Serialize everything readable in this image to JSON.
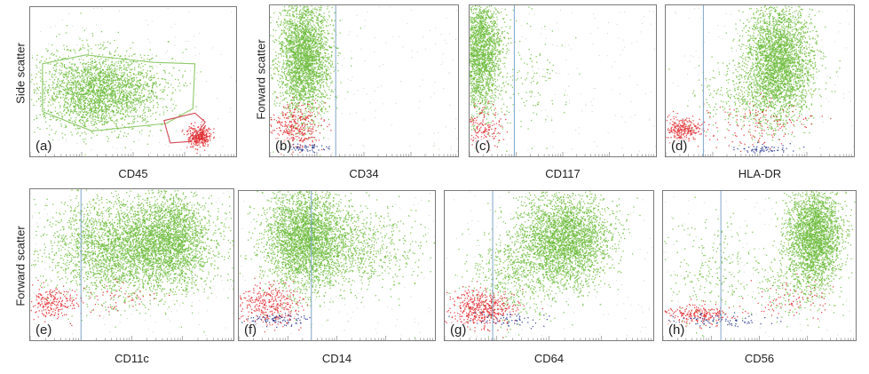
{
  "chart_data": [
    {
      "type": "scatter",
      "panel_label": "(a)",
      "xlabel": "CD45",
      "ylabel": "Side scatter",
      "series": [
        {
          "color": "#6dbb3c"
        },
        {
          "color": "#e0262a"
        }
      ],
      "clusters": [
        {
          "series": 0,
          "cx": 0.33,
          "cy": 0.56,
          "sx": 0.15,
          "sy": 0.13,
          "n": 2600
        },
        {
          "series": 1,
          "cx": 0.82,
          "cy": 0.86,
          "sx": 0.03,
          "sy": 0.035,
          "n": 320
        }
      ],
      "gates": [
        {
          "series": 0,
          "points": [
            [
              0.06,
              0.38
            ],
            [
              0.27,
              0.32
            ],
            [
              0.6,
              0.37
            ],
            [
              0.8,
              0.38
            ],
            [
              0.79,
              0.68
            ],
            [
              0.66,
              0.78
            ],
            [
              0.3,
              0.83
            ],
            [
              0.06,
              0.7
            ]
          ]
        },
        {
          "series": 1,
          "points": [
            [
              0.65,
              0.76
            ],
            [
              0.8,
              0.71
            ],
            [
              0.85,
              0.77
            ],
            [
              0.78,
              0.9
            ],
            [
              0.68,
              0.91
            ]
          ]
        }
      ],
      "divider": null
    },
    {
      "type": "scatter",
      "panel_label": "(b)",
      "xlabel": "CD34",
      "ylabel": "Forward scatter",
      "series": [
        {
          "color": "#6dbb3c"
        },
        {
          "color": "#e0262a"
        },
        {
          "color": "#1f2f8a"
        }
      ],
      "clusters": [
        {
          "series": 0,
          "cx": 0.18,
          "cy": 0.33,
          "sx": 0.07,
          "sy": 0.2,
          "n": 2800
        },
        {
          "series": 1,
          "cx": 0.13,
          "cy": 0.8,
          "sx": 0.07,
          "sy": 0.07,
          "n": 320
        },
        {
          "series": 2,
          "cx": 0.18,
          "cy": 0.94,
          "sx": 0.06,
          "sy": 0.015,
          "n": 60
        }
      ],
      "gates": [],
      "divider": 0.35
    },
    {
      "type": "scatter",
      "panel_label": "(c)",
      "xlabel": "CD117",
      "ylabel": "",
      "series": [
        {
          "color": "#6dbb3c"
        },
        {
          "color": "#e0262a"
        }
      ],
      "clusters": [
        {
          "series": 0,
          "cx": 0.05,
          "cy": 0.3,
          "sx": 0.06,
          "sy": 0.2,
          "n": 2200
        },
        {
          "series": 0,
          "cx": 0.28,
          "cy": 0.5,
          "sx": 0.12,
          "sy": 0.2,
          "n": 150
        },
        {
          "series": 1,
          "cx": 0.07,
          "cy": 0.8,
          "sx": 0.05,
          "sy": 0.07,
          "n": 160
        }
      ],
      "gates": [],
      "divider": 0.24
    },
    {
      "type": "scatter",
      "panel_label": "(d)",
      "xlabel": "HLA-DR",
      "ylabel": "",
      "series": [
        {
          "color": "#6dbb3c"
        },
        {
          "color": "#e0262a"
        },
        {
          "color": "#1f2f8a"
        }
      ],
      "clusters": [
        {
          "series": 0,
          "cx": 0.6,
          "cy": 0.35,
          "sx": 0.09,
          "sy": 0.18,
          "n": 2800
        },
        {
          "series": 0,
          "cx": 0.48,
          "cy": 0.6,
          "sx": 0.14,
          "sy": 0.12,
          "n": 500
        },
        {
          "series": 1,
          "cx": 0.09,
          "cy": 0.82,
          "sx": 0.05,
          "sy": 0.04,
          "n": 260
        },
        {
          "series": 1,
          "cx": 0.48,
          "cy": 0.78,
          "sx": 0.14,
          "sy": 0.08,
          "n": 140
        },
        {
          "series": 2,
          "cx": 0.5,
          "cy": 0.95,
          "sx": 0.07,
          "sy": 0.015,
          "n": 60
        }
      ],
      "gates": [],
      "divider": 0.2
    },
    {
      "type": "scatter",
      "panel_label": "(e)",
      "xlabel": "CD11c",
      "ylabel": "Forward scatter",
      "series": [
        {
          "color": "#6dbb3c"
        },
        {
          "color": "#e0262a"
        }
      ],
      "clusters": [
        {
          "series": 0,
          "cx": 0.5,
          "cy": 0.38,
          "sx": 0.2,
          "sy": 0.16,
          "n": 3600
        },
        {
          "series": 0,
          "cx": 0.7,
          "cy": 0.3,
          "sx": 0.08,
          "sy": 0.15,
          "n": 1200
        },
        {
          "series": 1,
          "cx": 0.1,
          "cy": 0.75,
          "sx": 0.06,
          "sy": 0.05,
          "n": 220
        },
        {
          "series": 1,
          "cx": 0.4,
          "cy": 0.72,
          "sx": 0.1,
          "sy": 0.05,
          "n": 60
        }
      ],
      "gates": [],
      "divider": 0.25
    },
    {
      "type": "scatter",
      "panel_label": "(f)",
      "xlabel": "CD14",
      "ylabel": "",
      "series": [
        {
          "color": "#6dbb3c"
        },
        {
          "color": "#e0262a"
        },
        {
          "color": "#1f2f8a"
        }
      ],
      "clusters": [
        {
          "series": 0,
          "cx": 0.33,
          "cy": 0.3,
          "sx": 0.1,
          "sy": 0.17,
          "n": 2800
        },
        {
          "series": 0,
          "cx": 0.55,
          "cy": 0.38,
          "sx": 0.18,
          "sy": 0.14,
          "n": 1000
        },
        {
          "series": 1,
          "cx": 0.15,
          "cy": 0.76,
          "sx": 0.08,
          "sy": 0.07,
          "n": 340
        },
        {
          "series": 2,
          "cx": 0.2,
          "cy": 0.86,
          "sx": 0.08,
          "sy": 0.02,
          "n": 80
        }
      ],
      "gates": [],
      "divider": 0.37
    },
    {
      "type": "scatter",
      "panel_label": "(g)",
      "xlabel": "CD64",
      "ylabel": "",
      "series": [
        {
          "color": "#6dbb3c"
        },
        {
          "color": "#e0262a"
        },
        {
          "color": "#1f2f8a"
        }
      ],
      "clusters": [
        {
          "series": 0,
          "cx": 0.57,
          "cy": 0.32,
          "sx": 0.11,
          "sy": 0.16,
          "n": 3000
        },
        {
          "series": 0,
          "cx": 0.32,
          "cy": 0.55,
          "sx": 0.1,
          "sy": 0.15,
          "n": 500
        },
        {
          "series": 1,
          "cx": 0.18,
          "cy": 0.78,
          "sx": 0.08,
          "sy": 0.06,
          "n": 480
        },
        {
          "series": 2,
          "cx": 0.3,
          "cy": 0.86,
          "sx": 0.09,
          "sy": 0.025,
          "n": 60
        }
      ],
      "gates": [],
      "divider": 0.23
    },
    {
      "type": "scatter",
      "panel_label": "(h)",
      "xlabel": "CD56",
      "ylabel": "",
      "series": [
        {
          "color": "#6dbb3c"
        },
        {
          "color": "#e0262a"
        },
        {
          "color": "#1f2f8a"
        }
      ],
      "clusters": [
        {
          "series": 0,
          "cx": 0.78,
          "cy": 0.3,
          "sx": 0.07,
          "sy": 0.17,
          "n": 2600
        },
        {
          "series": 0,
          "cx": 0.25,
          "cy": 0.5,
          "sx": 0.12,
          "sy": 0.18,
          "n": 220
        },
        {
          "series": 0,
          "cx": 0.65,
          "cy": 0.62,
          "sx": 0.12,
          "sy": 0.1,
          "n": 200
        },
        {
          "series": 1,
          "cx": 0.18,
          "cy": 0.82,
          "sx": 0.09,
          "sy": 0.035,
          "n": 220
        },
        {
          "series": 1,
          "cx": 0.65,
          "cy": 0.72,
          "sx": 0.1,
          "sy": 0.07,
          "n": 80
        },
        {
          "series": 2,
          "cx": 0.3,
          "cy": 0.86,
          "sx": 0.12,
          "sy": 0.02,
          "n": 80
        }
      ],
      "gates": [],
      "divider": 0.3
    }
  ]
}
